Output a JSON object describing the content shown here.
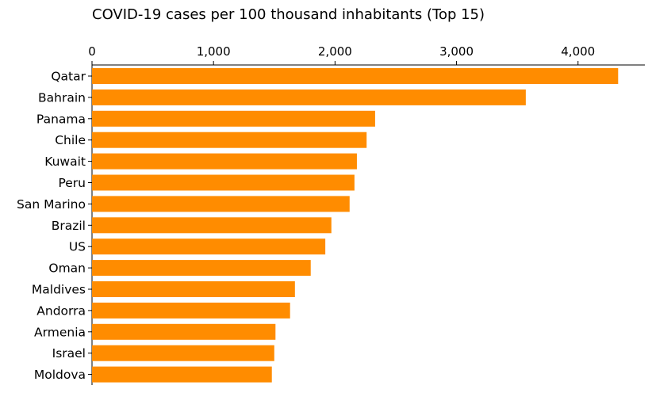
{
  "chart_data": {
    "type": "bar",
    "orientation": "horizontal",
    "title": "COVID-19 cases per 100 thousand inhabitants (Top 15)",
    "xlabel": "",
    "ylabel": "",
    "x_axis_position": "top",
    "xlim": [
      0,
      4550
    ],
    "xticks": [
      0,
      1000,
      2000,
      3000,
      4000
    ],
    "xtick_labels": [
      "0",
      "1,000",
      "2,000",
      "3,000",
      "4,000"
    ],
    "grid": false,
    "bar_color": "#ff8c00",
    "categories": [
      "Qatar",
      "Bahrain",
      "Panama",
      "Chile",
      "Kuwait",
      "Peru",
      "San Marino",
      "Brazil",
      "US",
      "Oman",
      "Maldives",
      "Andorra",
      "Armenia",
      "Israel",
      "Moldova"
    ],
    "values": [
      4330,
      3570,
      2330,
      2260,
      2180,
      2160,
      2120,
      1970,
      1920,
      1800,
      1670,
      1630,
      1510,
      1500,
      1480
    ]
  }
}
